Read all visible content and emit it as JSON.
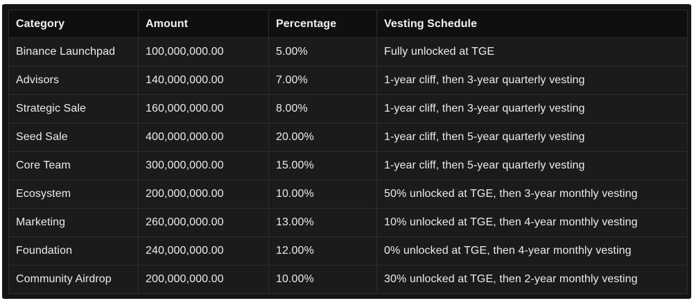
{
  "table": {
    "headers": [
      "Category",
      "Amount",
      "Percentage",
      "Vesting Schedule"
    ],
    "rows": [
      [
        "Binance Launchpad",
        "100,000,000.00",
        "5.00%",
        "Fully unlocked at TGE"
      ],
      [
        "Advisors",
        "140,000,000.00",
        "7.00%",
        "1-year cliff, then 3-year quarterly vesting"
      ],
      [
        "Strategic Sale",
        "160,000,000.00",
        "8.00%",
        "1-year cliff, then 3-year quarterly vesting"
      ],
      [
        "Seed Sale",
        "400,000,000.00",
        "20.00%",
        "1-year cliff, then 5-year quarterly vesting"
      ],
      [
        "Core Team",
        "300,000,000.00",
        "15.00%",
        "1-year cliff, then 5-year quarterly vesting"
      ],
      [
        "Ecosystem",
        "200,000,000.00",
        "10.00%",
        "50% unlocked at TGE, then 3-year monthly vesting"
      ],
      [
        "Marketing",
        "260,000,000.00",
        "13.00%",
        "10% unlocked at TGE, then 4-year monthly vesting"
      ],
      [
        "Foundation",
        "240,000,000.00",
        "12.00%",
        "0% unlocked at TGE, then 4-year monthly vesting"
      ],
      [
        "Community Airdrop",
        "200,000,000.00",
        "10.00%",
        "30% unlocked at TGE, then 2-year monthly vesting"
      ]
    ]
  },
  "colors": {
    "frame_background": "#151515",
    "header_background": "#0f0f0f",
    "row_background": "#1b1b1b",
    "border": "#2e2e2e",
    "text": "#ececec"
  }
}
